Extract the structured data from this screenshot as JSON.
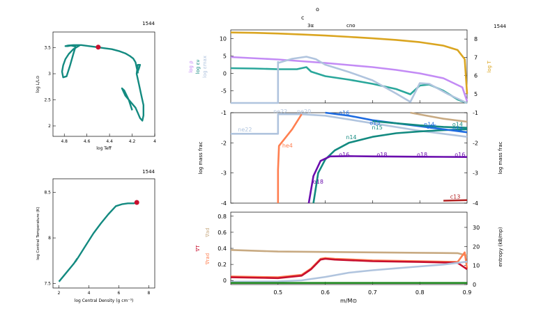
{
  "model_number": "1544",
  "top_markers": {
    "o": "o",
    "c": "c",
    "tri_alpha": "3α",
    "cno": "cno"
  },
  "colors": {
    "teal": "#138a80",
    "red": "#c8102e",
    "lilac": "#c38bf5",
    "gold": "#daa520",
    "lightblue": "#b0c4de",
    "tan": "#c8aa82",
    "salmon": "#ff7f50",
    "blue": "#1e6be0",
    "purple": "#6a0dad",
    "darkred": "#b22222",
    "green": "#228b22"
  },
  "chart_data": [
    {
      "id": "hr",
      "type": "line",
      "xlabel": "log Teff",
      "ylabel": "log L/L⊙",
      "xlim": [
        4.9,
        4.0
      ],
      "ylim": [
        1.8,
        3.8
      ],
      "xticks": [
        "4.8",
        "4.6",
        "4.4",
        "4.2",
        "4"
      ],
      "yticks": [
        "2",
        "2.5",
        "3",
        "3.5"
      ],
      "series": [
        {
          "x": [
            4.66,
            4.72,
            4.76,
            4.79,
            4.81,
            4.82,
            4.81,
            4.78,
            4.75,
            4.72,
            4.7,
            4.74,
            4.77,
            4.79,
            4.79,
            4.77,
            4.72,
            4.65,
            4.58,
            4.51,
            4.45,
            4.38,
            4.31,
            4.26,
            4.22,
            4.19,
            4.17,
            4.16,
            4.15,
            4.15,
            4.14,
            4.13,
            4.15,
            4.16,
            4.14,
            4.12,
            4.1,
            4.1,
            4.11,
            4.13,
            4.15,
            4.17,
            4.21,
            4.26,
            4.29,
            4.27,
            4.23,
            4.2
          ],
          "y": [
            3.55,
            3.47,
            3.38,
            3.28,
            3.16,
            3.04,
            2.93,
            2.95,
            3.15,
            3.38,
            3.52,
            3.54,
            3.53,
            3.53,
            3.53,
            3.54,
            3.55,
            3.55,
            3.53,
            3.51,
            3.49,
            3.47,
            3.43,
            3.39,
            3.34,
            3.29,
            3.22,
            3.12,
            3.02,
            3.05,
            3.1,
            3.17,
            3.17,
            3.0,
            2.8,
            2.6,
            2.4,
            2.2,
            2.1,
            2.15,
            2.25,
            2.35,
            2.45,
            2.58,
            2.72,
            2.68,
            2.5,
            2.3
          ]
        }
      ],
      "marker": {
        "x": 4.5,
        "y": 3.51
      }
    },
    {
      "id": "central",
      "type": "line",
      "xlabel": "log Central Density (g cm⁻³)",
      "ylabel": "log Central Temperature (K)",
      "xlim": [
        1.6,
        8.4
      ],
      "ylim": [
        7.45,
        8.65
      ],
      "xticks": [
        "2",
        "4",
        "6",
        "8"
      ],
      "yticks": [
        "7.5",
        "8",
        "8.5"
      ],
      "series": [
        {
          "x": [
            2.0,
            2.5,
            3.0,
            3.2,
            3.1,
            3.3,
            3.8,
            4.3,
            4.8,
            5.3,
            5.8,
            6.2,
            6.6,
            7.0,
            7.2
          ],
          "y": [
            7.52,
            7.62,
            7.72,
            7.77,
            7.74,
            7.79,
            7.92,
            8.05,
            8.16,
            8.26,
            8.35,
            8.37,
            8.38,
            8.38,
            8.39
          ]
        }
      ],
      "marker": {
        "x": 7.2,
        "y": 8.39
      }
    },
    {
      "id": "profile_top",
      "type": "line",
      "xlim": [
        0.4,
        0.9
      ],
      "ylim_left": [
        -8.5,
        12.5
      ],
      "ylim_right": [
        4.5,
        8.5
      ],
      "yticks_left": [
        "10",
        "5",
        "0",
        "-5"
      ],
      "yticks_right": [
        "8",
        "7",
        "6",
        "5"
      ],
      "ylabel_left": [
        {
          "text": "log ρ",
          "color": "#c38bf5"
        },
        {
          "text": "log εν",
          "color": "#138a80"
        },
        {
          "text": "log εmax",
          "color": "#b0c4de"
        }
      ],
      "ylabel_right": "log T",
      "series": [
        {
          "name": "log ρ",
          "axis": "left",
          "color": "#c38bf5",
          "x": [
            0.4,
            0.5,
            0.55,
            0.6,
            0.65,
            0.7,
            0.75,
            0.8,
            0.85,
            0.89,
            0.9
          ],
          "y": [
            4.7,
            4.0,
            3.5,
            3.0,
            2.4,
            1.8,
            1.0,
            0.0,
            -1.4,
            -4.0,
            -8.0
          ]
        },
        {
          "name": "log T",
          "axis": "right",
          "color": "#daa520",
          "x": [
            0.4,
            0.45,
            0.5,
            0.55,
            0.6,
            0.65,
            0.7,
            0.75,
            0.8,
            0.85,
            0.88,
            0.895,
            0.9
          ],
          "y": [
            8.36,
            8.34,
            8.3,
            8.25,
            8.19,
            8.12,
            8.04,
            7.95,
            7.83,
            7.64,
            7.4,
            6.9,
            5.0
          ]
        },
        {
          "name": "log εν",
          "axis": "left",
          "color": "#2aa79b",
          "x": [
            0.4,
            0.45,
            0.5,
            0.54,
            0.56,
            0.57,
            0.6,
            0.65,
            0.7,
            0.75,
            0.78,
            0.8,
            0.82,
            0.85,
            0.88,
            0.9
          ],
          "y": [
            1.5,
            1.4,
            1.2,
            1.2,
            1.8,
            0.5,
            -0.8,
            -1.8,
            -3.0,
            -4.5,
            -6.0,
            -3.5,
            -3.2,
            -5.0,
            -7.5,
            -8.5
          ]
        },
        {
          "name": "log εmax",
          "axis": "left",
          "color": "#b0c4de",
          "x": [
            0.4,
            0.5,
            0.5,
            0.5,
            0.53,
            0.56,
            0.58,
            0.6,
            0.65,
            0.7,
            0.75,
            0.78,
            0.8,
            0.82,
            0.86,
            0.9
          ],
          "y": [
            -8.5,
            -8.5,
            3.3,
            3.0,
            4.2,
            4.8,
            4.1,
            2.5,
            0.4,
            -2.0,
            -5.8,
            -8.2,
            -2.8,
            -3.0,
            -6.0,
            -8.5
          ]
        }
      ]
    },
    {
      "id": "profile_mid",
      "type": "line",
      "xlim": [
        0.4,
        0.9
      ],
      "ylim": [
        -4,
        -1
      ],
      "yticks": [
        "-1",
        "-2",
        "-3",
        "-4"
      ],
      "ylabel_left": "log mass frac",
      "ylabel_right": "log mass frac",
      "labels": [
        {
          "text": "ne22",
          "x": 0.43,
          "y": -1.62,
          "color": "#b0c4de"
        },
        {
          "text": "ne22",
          "x": 0.505,
          "y": -1.02,
          "color": "#b0c4de"
        },
        {
          "text": "ne20",
          "x": 0.555,
          "y": -1.02,
          "color": "#b0c4de"
        },
        {
          "text": "he4",
          "x": 0.52,
          "y": -2.15,
          "color": "#ff7f50"
        },
        {
          "text": "n14",
          "x": 0.655,
          "y": -1.88,
          "color": "#138a80"
        },
        {
          "text": "o16",
          "x": 0.64,
          "y": -1.07,
          "color": "#1e6be0"
        },
        {
          "text": "o15",
          "x": 0.705,
          "y": -1.4,
          "color": "#1e6be0"
        },
        {
          "text": "n15",
          "x": 0.71,
          "y": -1.55,
          "color": "#138a80"
        },
        {
          "text": "n14",
          "x": 0.82,
          "y": -1.45,
          "color": "#1e6be0"
        },
        {
          "text": "o15",
          "x": 0.825,
          "y": -1.53,
          "color": "#1e6be0"
        },
        {
          "text": "o14",
          "x": 0.88,
          "y": -1.45,
          "color": "#138a80"
        },
        {
          "text": "n15",
          "x": 0.88,
          "y": -1.6,
          "color": "#1e6be0"
        },
        {
          "text": "o16",
          "x": 0.64,
          "y": -2.45,
          "color": "#6a0dad"
        },
        {
          "text": "o18",
          "x": 0.72,
          "y": -2.45,
          "color": "#6a0dad"
        },
        {
          "text": "o18",
          "x": 0.805,
          "y": -2.45,
          "color": "#6a0dad"
        },
        {
          "text": "o16",
          "x": 0.885,
          "y": -2.45,
          "color": "#6a0dad"
        },
        {
          "text": "o18",
          "x": 0.585,
          "y": -3.35,
          "color": "#6a0dad"
        },
        {
          "text": "c13",
          "x": 0.875,
          "y": -3.85,
          "color": "#b22222"
        }
      ],
      "series": [
        {
          "name": "ne22",
          "color": "#b0c4de",
          "x": [
            0.4,
            0.5,
            0.5,
            0.55,
            0.6,
            0.7,
            0.8,
            0.9
          ],
          "y": [
            -1.7,
            -1.7,
            -1.05,
            -1.05,
            -1.1,
            -1.35,
            -1.6,
            -1.8
          ]
        },
        {
          "name": "he4",
          "color": "#ff7f50",
          "x": [
            0.5,
            0.5,
            0.502,
            0.53,
            0.55
          ],
          "y": [
            -4.0,
            -2.9,
            -2.1,
            -1.55,
            -1.05
          ]
        },
        {
          "name": "n14",
          "color": "#138a80",
          "x": [
            0.575,
            0.585,
            0.6,
            0.62,
            0.65,
            0.7,
            0.75,
            0.8,
            0.85,
            0.9
          ],
          "y": [
            -4.0,
            -3.0,
            -2.55,
            -2.25,
            -2.0,
            -1.8,
            -1.68,
            -1.62,
            -1.58,
            -1.55
          ]
        },
        {
          "name": "o16",
          "color": "#6a0dad",
          "x": [
            0.565,
            0.575,
            0.59,
            0.61,
            0.65,
            0.7,
            0.8,
            0.9
          ],
          "y": [
            -4.0,
            -3.1,
            -2.6,
            -2.45,
            -2.44,
            -2.45,
            -2.46,
            -2.47
          ]
        },
        {
          "name": "o15",
          "color": "#1e6be0",
          "x": [
            0.6,
            0.65,
            0.7,
            0.75,
            0.8,
            0.85,
            0.9
          ],
          "y": [
            -1.0,
            -1.1,
            -1.25,
            -1.35,
            -1.45,
            -1.55,
            -1.65
          ]
        },
        {
          "name": "n15",
          "color": "#138a80",
          "x": [
            0.7,
            0.75,
            0.8,
            0.85,
            0.9
          ],
          "y": [
            -1.28,
            -1.35,
            -1.42,
            -1.47,
            -1.5
          ]
        },
        {
          "name": "c12",
          "color": "#c8aa82",
          "x": [
            0.78,
            0.85,
            0.9
          ],
          "y": [
            -1.0,
            -1.2,
            -1.3
          ]
        },
        {
          "name": "c13",
          "color": "#b22222",
          "x": [
            0.85,
            0.9
          ],
          "y": [
            -3.92,
            -3.9
          ]
        }
      ]
    },
    {
      "id": "profile_bot",
      "type": "line",
      "xlabel": "m/M⊙",
      "xlim": [
        0.4,
        0.9
      ],
      "xticks": [
        "0.5",
        "0.6",
        "0.7",
        "0.8",
        "0.9"
      ],
      "ylim_left": [
        -0.05,
        0.85
      ],
      "ylim_right": [
        0,
        38
      ],
      "yticks_left": [
        "0.8",
        "0.6",
        "0.4",
        "0.2",
        "0"
      ],
      "yticks_right": [
        "30",
        "20",
        "10",
        "0"
      ],
      "ylabel_left": [
        {
          "text": "∇rad",
          "color": "#ff7f50"
        },
        {
          "text": "∇T",
          "color": "#c8102e"
        },
        {
          "text": "∇ad",
          "color": "#c8aa82"
        }
      ],
      "ylabel_right": "entropy (kB/mp)",
      "series": [
        {
          "name": "grad_ad",
          "axis": "left",
          "color": "#c8aa82",
          "x": [
            0.4,
            0.5,
            0.6,
            0.7,
            0.8,
            0.88,
            0.9
          ],
          "y": [
            0.38,
            0.36,
            0.355,
            0.35,
            0.345,
            0.34,
            0.31
          ]
        },
        {
          "name": "grad_rad",
          "axis": "left",
          "color": "#ff7f50",
          "x": [
            0.4,
            0.5,
            0.55,
            0.57,
            0.59,
            0.6,
            0.62,
            0.7,
            0.8,
            0.88,
            0.895,
            0.9
          ],
          "y": [
            0.05,
            0.04,
            0.07,
            0.15,
            0.27,
            0.28,
            0.27,
            0.25,
            0.24,
            0.23,
            0.35,
            0.15
          ]
        },
        {
          "name": "grad_T",
          "axis": "left",
          "color": "#c8102e",
          "x": [
            0.4,
            0.5,
            0.55,
            0.57,
            0.59,
            0.6,
            0.62,
            0.7,
            0.8,
            0.88,
            0.9
          ],
          "y": [
            0.04,
            0.03,
            0.06,
            0.14,
            0.26,
            0.27,
            0.26,
            0.24,
            0.23,
            0.22,
            0.14
          ]
        },
        {
          "name": "entropy",
          "axis": "right",
          "color": "#b0c4de",
          "x": [
            0.4,
            0.5,
            0.55,
            0.6,
            0.65,
            0.7,
            0.75,
            0.8,
            0.85,
            0.9
          ],
          "y": [
            1.5,
            1.6,
            2.2,
            4.0,
            6.2,
            7.5,
            8.5,
            9.5,
            10.5,
            12.0
          ]
        },
        {
          "name": "green_base",
          "axis": "left",
          "color": "#228b22",
          "x": [
            0.4,
            0.9
          ],
          "y": [
            -0.03,
            -0.03
          ]
        }
      ]
    }
  ]
}
